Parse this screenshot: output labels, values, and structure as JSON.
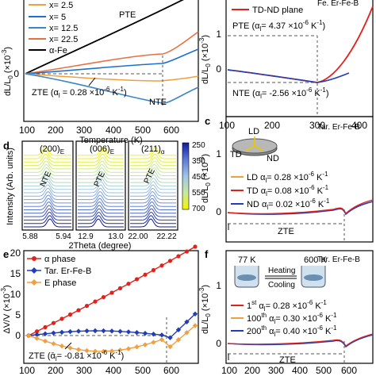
{
  "figure": {
    "panel_letters": {
      "c": "c",
      "d": "d",
      "e": "e",
      "f": "f"
    },
    "colors": {
      "orange": "#f0a040",
      "red": "#e0221c",
      "blue": "#1f3fb8",
      "black": "#000000",
      "dark_blue": "#1a2a8a",
      "navy": "#202d8c"
    }
  },
  "panel_a": {
    "legend": [
      "x= 2.5",
      "x= 5",
      "x= 12.5",
      "x= 22.5",
      "α-Fe"
    ],
    "legend_colors": [
      "#f0a040",
      "#1f6fd0",
      "#3a86c8",
      "#e87040",
      "#000000"
    ],
    "annotations": {
      "pte": "PTE",
      "nte": "NTE",
      "zte": "ZTE (α"
    },
    "zte_sub": "l",
    "zte_value": " = 0.28 ×10",
    "zte_exp": "-6",
    "zte_unit": " K",
    "zte_unit_exp": "-1",
    "zte_close": ")",
    "ylabel": "dL/L",
    "ylabel_sub": "0",
    "ylabel_unit": " (×10",
    "ylabel_unit_exp": "-3",
    "ylabel_close": ")",
    "xlabel": "Temperature (K)",
    "xticks": [
      "100",
      "200",
      "300",
      "400",
      "500",
      "600"
    ],
    "yticks": [
      "0"
    ]
  },
  "panel_b": {
    "label_top": "Fe. Er-Fe-B",
    "legend": "TD-ND plane",
    "pte": "PTE (α",
    "pte_sub": "l",
    "pte_value": "= 4.37 ×10",
    "pte_exp": "-6",
    "pte_unit": " K",
    "pte_unit_exp": "-1",
    "pte_close": ")",
    "nte": "NTE (α",
    "nte_sub": "l",
    "nte_value": "= -2.56 ×10",
    "nte_exp": "-6",
    "nte_unit": " K",
    "nte_unit_exp": "-1",
    "nte_close": ")",
    "ylabel": "dL/L",
    "ylabel_sub": "0",
    "ylabel_unit": " (×10",
    "ylabel_unit_exp": "-3",
    "ylabel_close": ")",
    "xticks": [
      "100",
      "200",
      "300",
      "400"
    ],
    "yticks": [
      "1",
      "0"
    ]
  },
  "panel_c": {
    "title": "Tar. Er-Fe-B",
    "sample_labels": {
      "ld": "LD",
      "td": "TD",
      "nd": "ND"
    },
    "legend": [
      {
        "dir": "LD",
        "alpha": "α",
        "sub": "l",
        "value": "= 0.28 ×10",
        "exp": "-6",
        "unit": " K",
        "uexp": "-1",
        "color": "#f0a040"
      },
      {
        "dir": "TD",
        "alpha": "α",
        "sub": "l",
        "value": "= 0.08 ×10",
        "exp": "-6",
        "unit": " K",
        "uexp": "-1",
        "color": "#e0221c"
      },
      {
        "dir": "ND",
        "alpha": "α",
        "sub": "l",
        "value": "= 0.02 ×10",
        "exp": "-6",
        "unit": " K",
        "uexp": "-1",
        "color": "#1f3fb8"
      }
    ],
    "zte": "ZTE",
    "ylabel": "dL/L",
    "ylabel_sub": "0",
    "ylabel_unit": " (×10",
    "ylabel_unit_exp": "-3",
    "ylabel_close": ")",
    "yticks": [
      "1",
      "0"
    ]
  },
  "panel_d": {
    "peaks": [
      {
        "label": "(200)",
        "sub": "E",
        "tag": "NTE",
        "xticks": [
          "5.88",
          "5.94"
        ]
      },
      {
        "label": "(006)",
        "sub": "E",
        "tag": "PTE",
        "xticks": [
          "12.9",
          "13.0"
        ]
      },
      {
        "label": "(211)",
        "sub": "α",
        "tag": "PTE",
        "xticks": [
          "22.00",
          "22.22"
        ]
      }
    ],
    "ylabel": "Intensity (Arb. units)",
    "xlabel": "2Theta (degree)",
    "colorbar_ticks": [
      "250",
      "350",
      "450",
      "550",
      "700"
    ]
  },
  "panel_e": {
    "legend": [
      "α phase",
      "Tar. Er-Fe-B",
      "E phase"
    ],
    "legend_colors": [
      "#e0221c",
      "#1f3fb8",
      "#f0a040"
    ],
    "zte": "ZTE (",
    "zte_alpha": "ᾱ",
    "zte_sub": "l",
    "zte_value": "= -0.81 ×10",
    "zte_exp": "-6",
    "zte_unit": " K",
    "zte_unit_exp": "-1",
    "zte_close": ")",
    "ylabel": "ΔV/V (×10",
    "ylabel_exp": "-3",
    "ylabel_close": ")",
    "xticks": [
      "100",
      "200",
      "300",
      "400",
      "500",
      "600"
    ],
    "yticks": [
      "20",
      "15",
      "10",
      "5",
      "0"
    ]
  },
  "panel_f": {
    "title": "Tar. Er-Fe-B",
    "temps": {
      "low": "77 K",
      "high": "600 K"
    },
    "heating": "Heating",
    "cooling": "Cooling",
    "legend": [
      {
        "cycle": "1",
        "sup": "st",
        "alpha": "α",
        "sub": "l",
        "value": "= 0.28 ×10",
        "exp": "-6",
        "unit": " K",
        "uexp": "-1",
        "color": "#e0221c"
      },
      {
        "cycle": "100",
        "sup": "th",
        "alpha": "α",
        "sub": "l",
        "value": "= 0.30 ×10",
        "exp": "-6",
        "unit": " K",
        "uexp": "-1",
        "color": "#f0a040"
      },
      {
        "cycle": "200",
        "sup": "th",
        "alpha": "α",
        "sub": "l",
        "value": "= 0.40 ×10",
        "exp": "-6",
        "unit": " K",
        "uexp": "-1",
        "color": "#1f3fb8"
      }
    ],
    "zte": "ZTE",
    "ylabel": "dL/L",
    "ylabel_sub": "0",
    "ylabel_unit": " (×10",
    "ylabel_unit_exp": "-3",
    "ylabel_close": ")",
    "xticks": [
      "100",
      "200",
      "300",
      "400",
      "500",
      "600"
    ],
    "yticks": [
      "1",
      "0"
    ]
  }
}
